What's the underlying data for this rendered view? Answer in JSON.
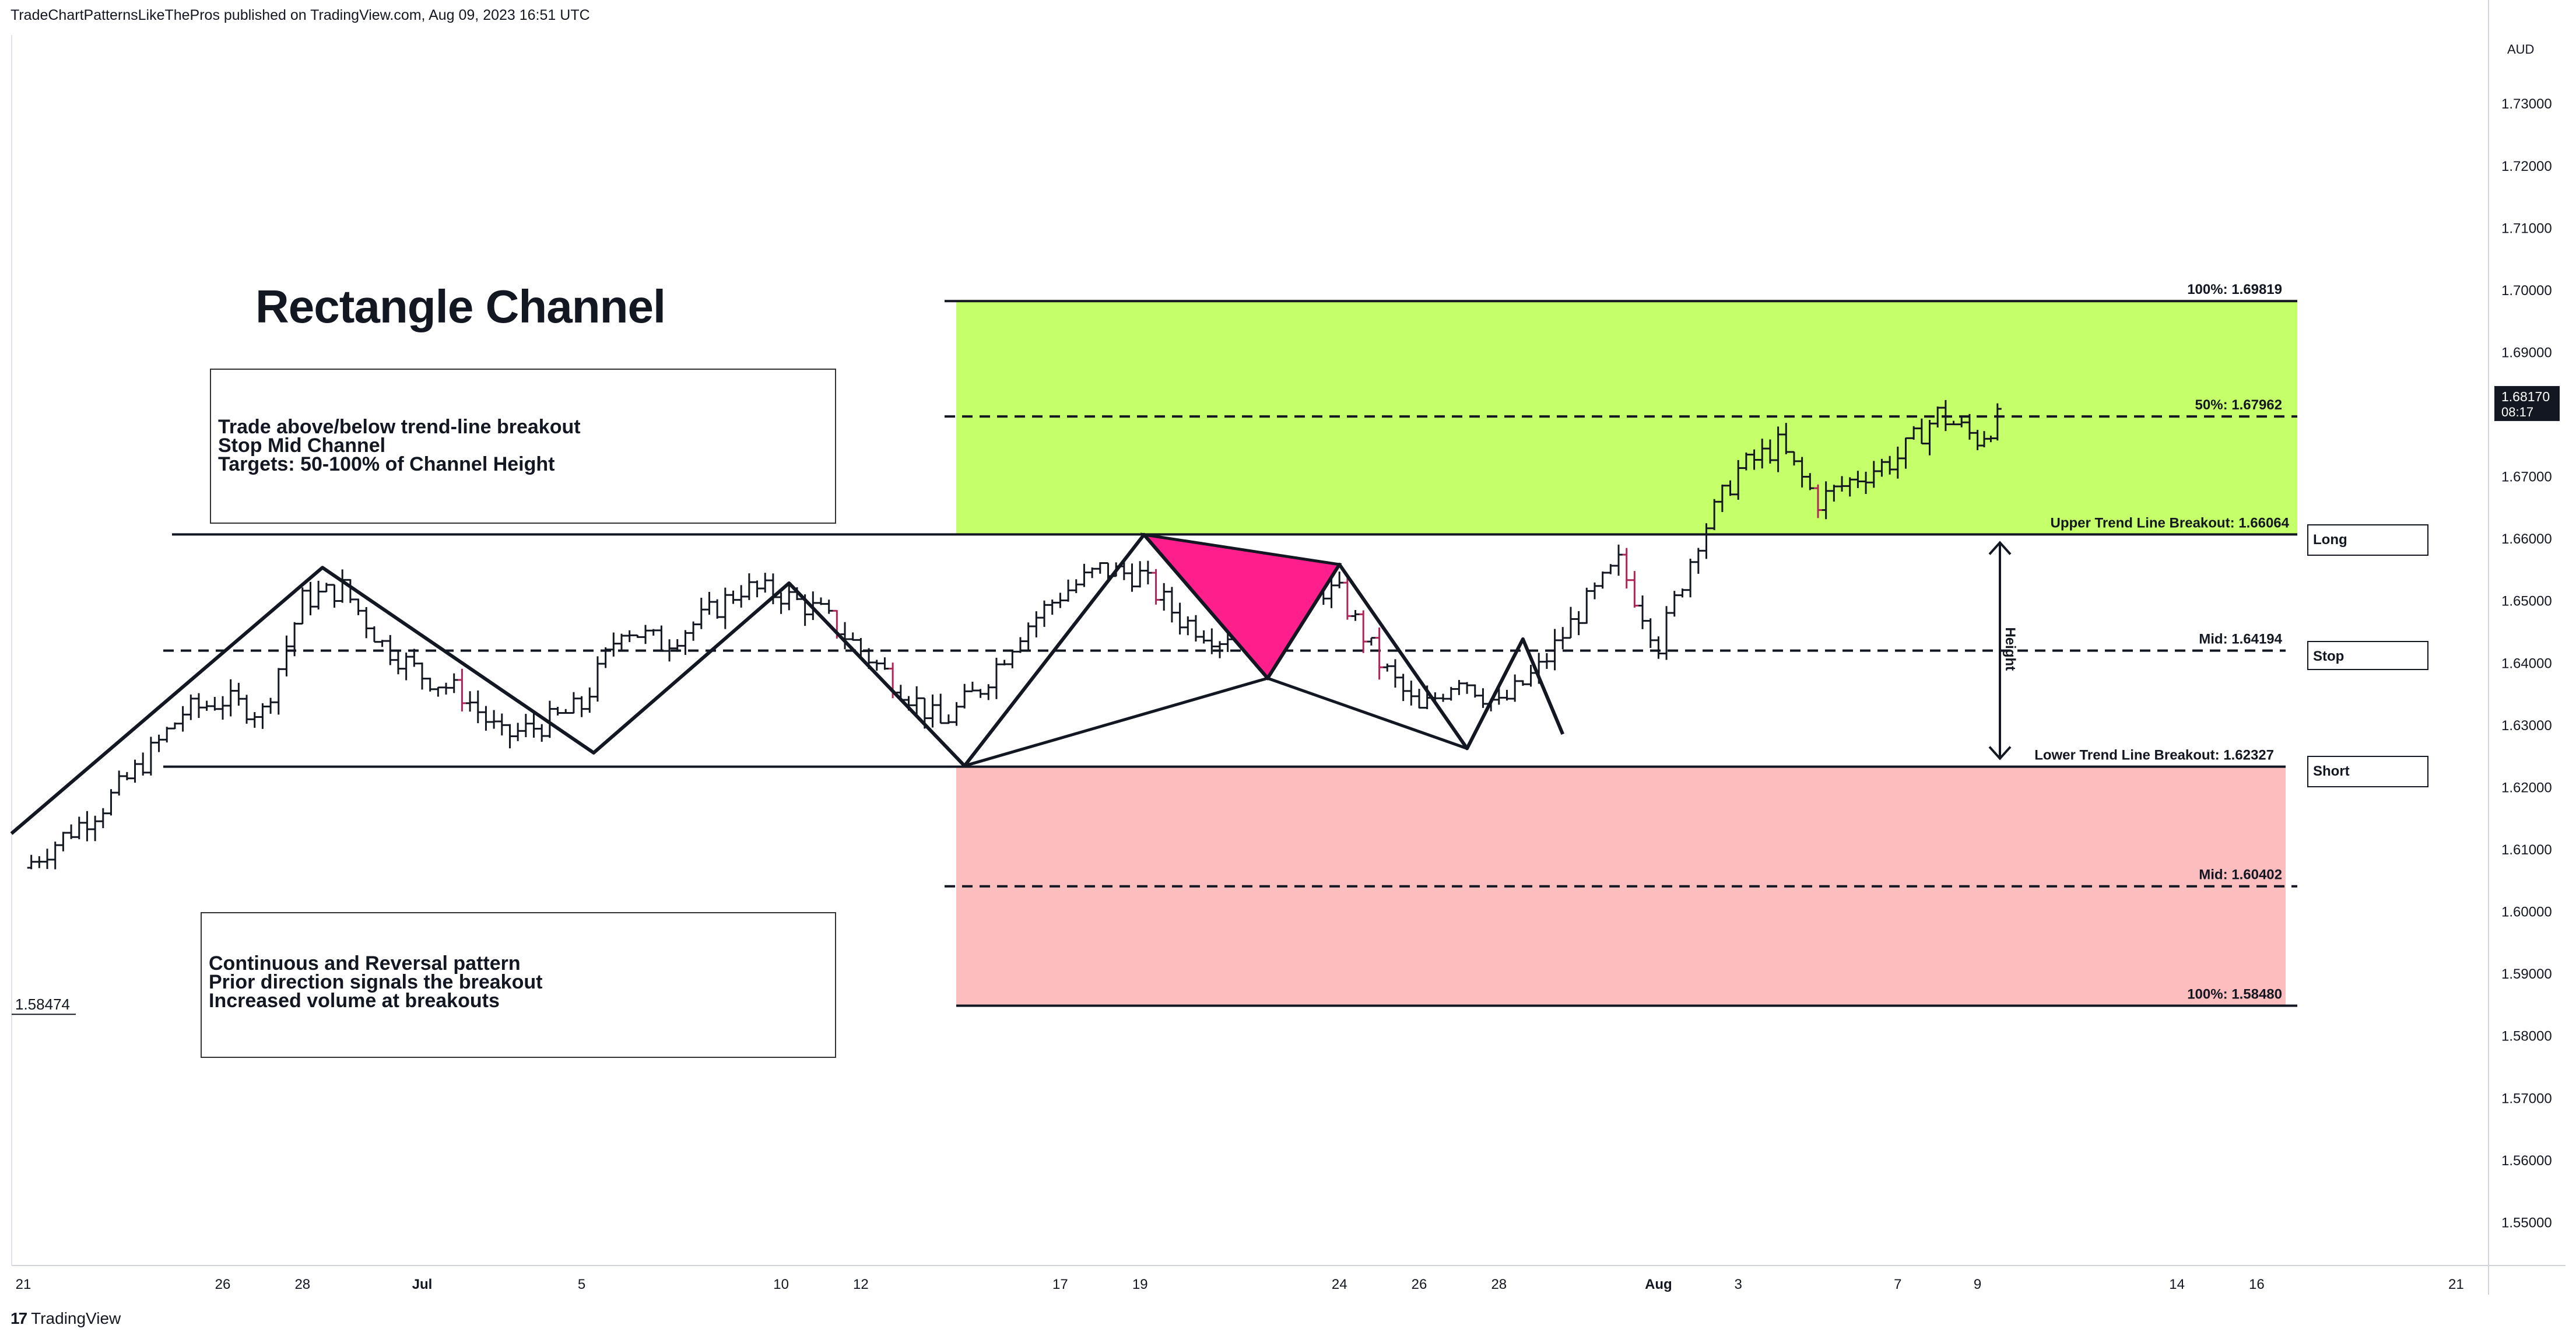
{
  "header": {
    "publisher": "TradeChartPatternsLikeThePros published on TradingView.com, Aug 09, 2023 16:51 UTC"
  },
  "footer": {
    "brand": "TradingView",
    "brand_icon": "tradingview-logo-icon"
  },
  "chart_title": "Rectangle Channel",
  "note_top": {
    "lines": [
      "Trade above/below trend-line breakout",
      "Stop Mid Channel",
      "Targets: 50-100% of Channel Height"
    ]
  },
  "note_bottom": {
    "lines": [
      "Continuous and Reversal pattern",
      "Prior direction signals the breakout",
      "Increased volume at breakouts"
    ]
  },
  "buttons": {
    "long": "Long",
    "stop": "Stop",
    "short": "Short"
  },
  "height_label": "Height",
  "chart_data": {
    "type": "ohlc",
    "currency": "AUD",
    "last_price": "1.68170",
    "countdown": "08:17",
    "left_price_tag": "1.58474",
    "ylim": [
      1.543,
      1.741
    ],
    "y_ticks": [
      1.55,
      1.56,
      1.57,
      1.58,
      1.59,
      1.6,
      1.61,
      1.62,
      1.63,
      1.64,
      1.65,
      1.66,
      1.67,
      1.68,
      1.69,
      1.7,
      1.71,
      1.72,
      1.73
    ],
    "y_tick_labels": [
      "1.55000",
      "1.56000",
      "1.57000",
      "1.58000",
      "1.59000",
      "1.60000",
      "1.61000",
      "1.62000",
      "1.63000",
      "1.64000",
      "1.65000",
      "1.66000",
      "1.67000",
      "1.68000",
      "1.69000",
      "1.70000",
      "1.71000",
      "1.72000",
      "1.73000"
    ],
    "x_ticks": [
      {
        "label": "21",
        "day": 0
      },
      {
        "label": "26",
        "day": 5
      },
      {
        "label": "28",
        "day": 7
      },
      {
        "label": "Jul",
        "day": 10,
        "bold": true
      },
      {
        "label": "5",
        "day": 14
      },
      {
        "label": "10",
        "day": 19
      },
      {
        "label": "12",
        "day": 21
      },
      {
        "label": "17",
        "day": 26
      },
      {
        "label": "19",
        "day": 28
      },
      {
        "label": "24",
        "day": 33
      },
      {
        "label": "26",
        "day": 35
      },
      {
        "label": "28",
        "day": 37
      },
      {
        "label": "Aug",
        "day": 41,
        "bold": true
      },
      {
        "label": "3",
        "day": 43
      },
      {
        "label": "7",
        "day": 47
      },
      {
        "label": "9",
        "day": 49
      },
      {
        "label": "14",
        "day": 54
      },
      {
        "label": "16",
        "day": 56
      },
      {
        "label": "21",
        "day": 61
      }
    ],
    "levels": {
      "upper_target_100": {
        "value": 1.69819,
        "label": "100%: 1.69819"
      },
      "upper_target_50": {
        "value": 1.67962,
        "label": "50%: 1.67962"
      },
      "upper_breakout": {
        "value": 1.66064,
        "label": "Upper Trend Line Breakout: 1.66064"
      },
      "mid": {
        "value": 1.64194,
        "label": "Mid: 1.64194"
      },
      "lower_breakout": {
        "value": 1.62327,
        "label": "Lower Trend Line Breakout: 1.62327"
      },
      "lower_mid": {
        "value": 1.60402,
        "label": "Mid: 1.60402"
      },
      "lower_target_100": {
        "value": 1.5848,
        "label": "100%: 1.58480"
      }
    },
    "zigzag": [
      {
        "day": -0.3,
        "y": 1.6125
      },
      {
        "day": 7.5,
        "y": 1.6553
      },
      {
        "day": 14.3,
        "y": 1.6255
      },
      {
        "day": 19.2,
        "y": 1.6528
      },
      {
        "day": 23.6,
        "y": 1.6234
      },
      {
        "day": 28.1,
        "y": 1.6606
      },
      {
        "day": 31.2,
        "y": 1.6375
      },
      {
        "day": 33.0,
        "y": 1.6558
      },
      {
        "day": 36.2,
        "y": 1.6262
      },
      {
        "day": 37.6,
        "y": 1.6438
      },
      {
        "day": 38.6,
        "y": 1.6285
      }
    ],
    "triangle": [
      {
        "day": 23.6,
        "y": 1.6234
      },
      {
        "day": 31.2,
        "y": 1.6375
      },
      {
        "day": 36.2,
        "y": 1.6262
      }
    ],
    "pink_triangle": [
      {
        "day": 28.1,
        "y": 1.6606
      },
      {
        "day": 33.0,
        "y": 1.6558
      },
      {
        "day": 31.2,
        "y": 1.6375
      }
    ],
    "bar_path": [
      [
        0,
        1.607
      ],
      [
        2,
        1.617
      ],
      [
        3,
        1.624
      ],
      [
        4,
        1.632
      ],
      [
        5,
        1.634
      ],
      [
        6,
        1.632
      ],
      [
        7,
        1.65
      ],
      [
        8,
        1.652
      ],
      [
        9,
        1.643
      ],
      [
        10,
        1.638
      ],
      [
        11,
        1.635
      ],
      [
        12,
        1.628
      ],
      [
        13,
        1.63
      ],
      [
        14,
        1.633
      ],
      [
        15,
        1.646
      ],
      [
        16,
        1.643
      ],
      [
        17,
        1.647
      ],
      [
        18,
        1.652
      ],
      [
        19,
        1.651
      ],
      [
        20,
        1.648
      ],
      [
        21,
        1.642
      ],
      [
        22,
        1.636
      ],
      [
        23,
        1.63
      ],
      [
        24,
        1.636
      ],
      [
        25,
        1.645
      ],
      [
        26,
        1.651
      ],
      [
        27,
        1.655
      ],
      [
        28,
        1.654
      ],
      [
        29,
        1.647
      ],
      [
        30,
        1.644
      ],
      [
        31,
        1.648
      ],
      [
        32,
        1.653
      ],
      [
        33,
        1.651
      ],
      [
        34,
        1.64
      ],
      [
        35,
        1.632
      ],
      [
        36,
        1.638
      ],
      [
        37,
        1.633
      ],
      [
        38,
        1.639
      ],
      [
        39,
        1.648
      ],
      [
        40,
        1.656
      ],
      [
        41,
        1.643
      ],
      [
        42,
        1.66
      ],
      [
        43,
        1.671
      ],
      [
        44,
        1.675
      ],
      [
        45,
        1.666
      ],
      [
        46,
        1.67
      ],
      [
        47,
        1.673
      ],
      [
        48,
        1.68
      ],
      [
        49,
        1.676
      ],
      [
        49.5,
        1.679
      ]
    ]
  }
}
